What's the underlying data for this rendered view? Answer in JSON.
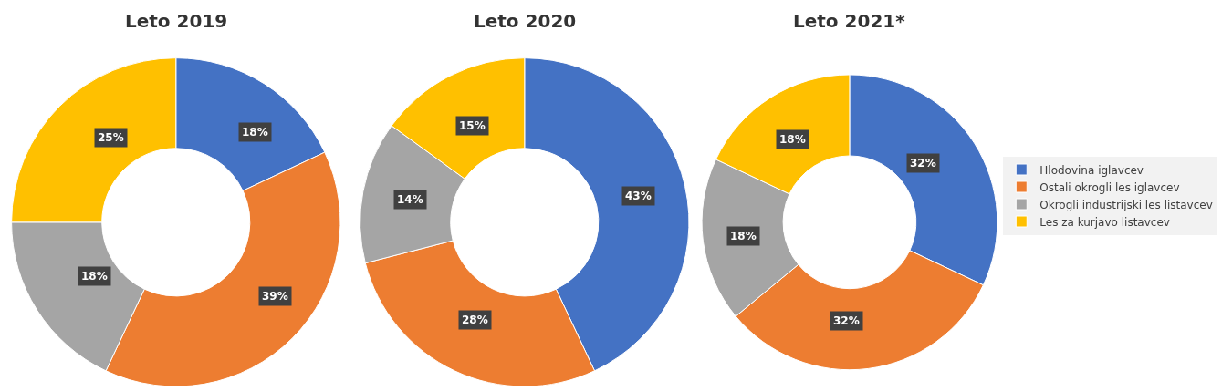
{
  "chart_data": [
    {
      "type": "donut",
      "title": "Leto 2019",
      "categories": [
        null,
        null,
        null,
        null
      ],
      "values": [
        18,
        39,
        18,
        25
      ],
      "value_labels": [
        "18%",
        "39%",
        "18%",
        "25%"
      ],
      "colors": [
        "#4472c4",
        "#ed7d31",
        "#a5a5a5",
        "#ffc000"
      ]
    },
    {
      "type": "donut",
      "title": "Leto 2020",
      "categories": [
        null,
        null,
        null,
        null
      ],
      "values": [
        43,
        28,
        14,
        15
      ],
      "value_labels": [
        "43%",
        "28%",
        "14%",
        "15%"
      ],
      "colors": [
        "#4472c4",
        "#ed7d31",
        "#a5a5a5",
        "#ffc000"
      ]
    },
    {
      "type": "donut",
      "title": "Leto 2021*",
      "categories": [
        "Hlodovina iglavcev",
        "Ostali okrogli les iglavcev",
        "Okrogli industrijski les listavcev",
        "Les za kurjavo listavcev"
      ],
      "values": [
        32,
        32,
        18,
        18
      ],
      "value_labels": [
        "32%",
        "32%",
        "18%",
        "18%"
      ],
      "colors": [
        "#4472c4",
        "#ed7d31",
        "#a5a5a5",
        "#ffc000"
      ],
      "legend": "right"
    }
  ]
}
